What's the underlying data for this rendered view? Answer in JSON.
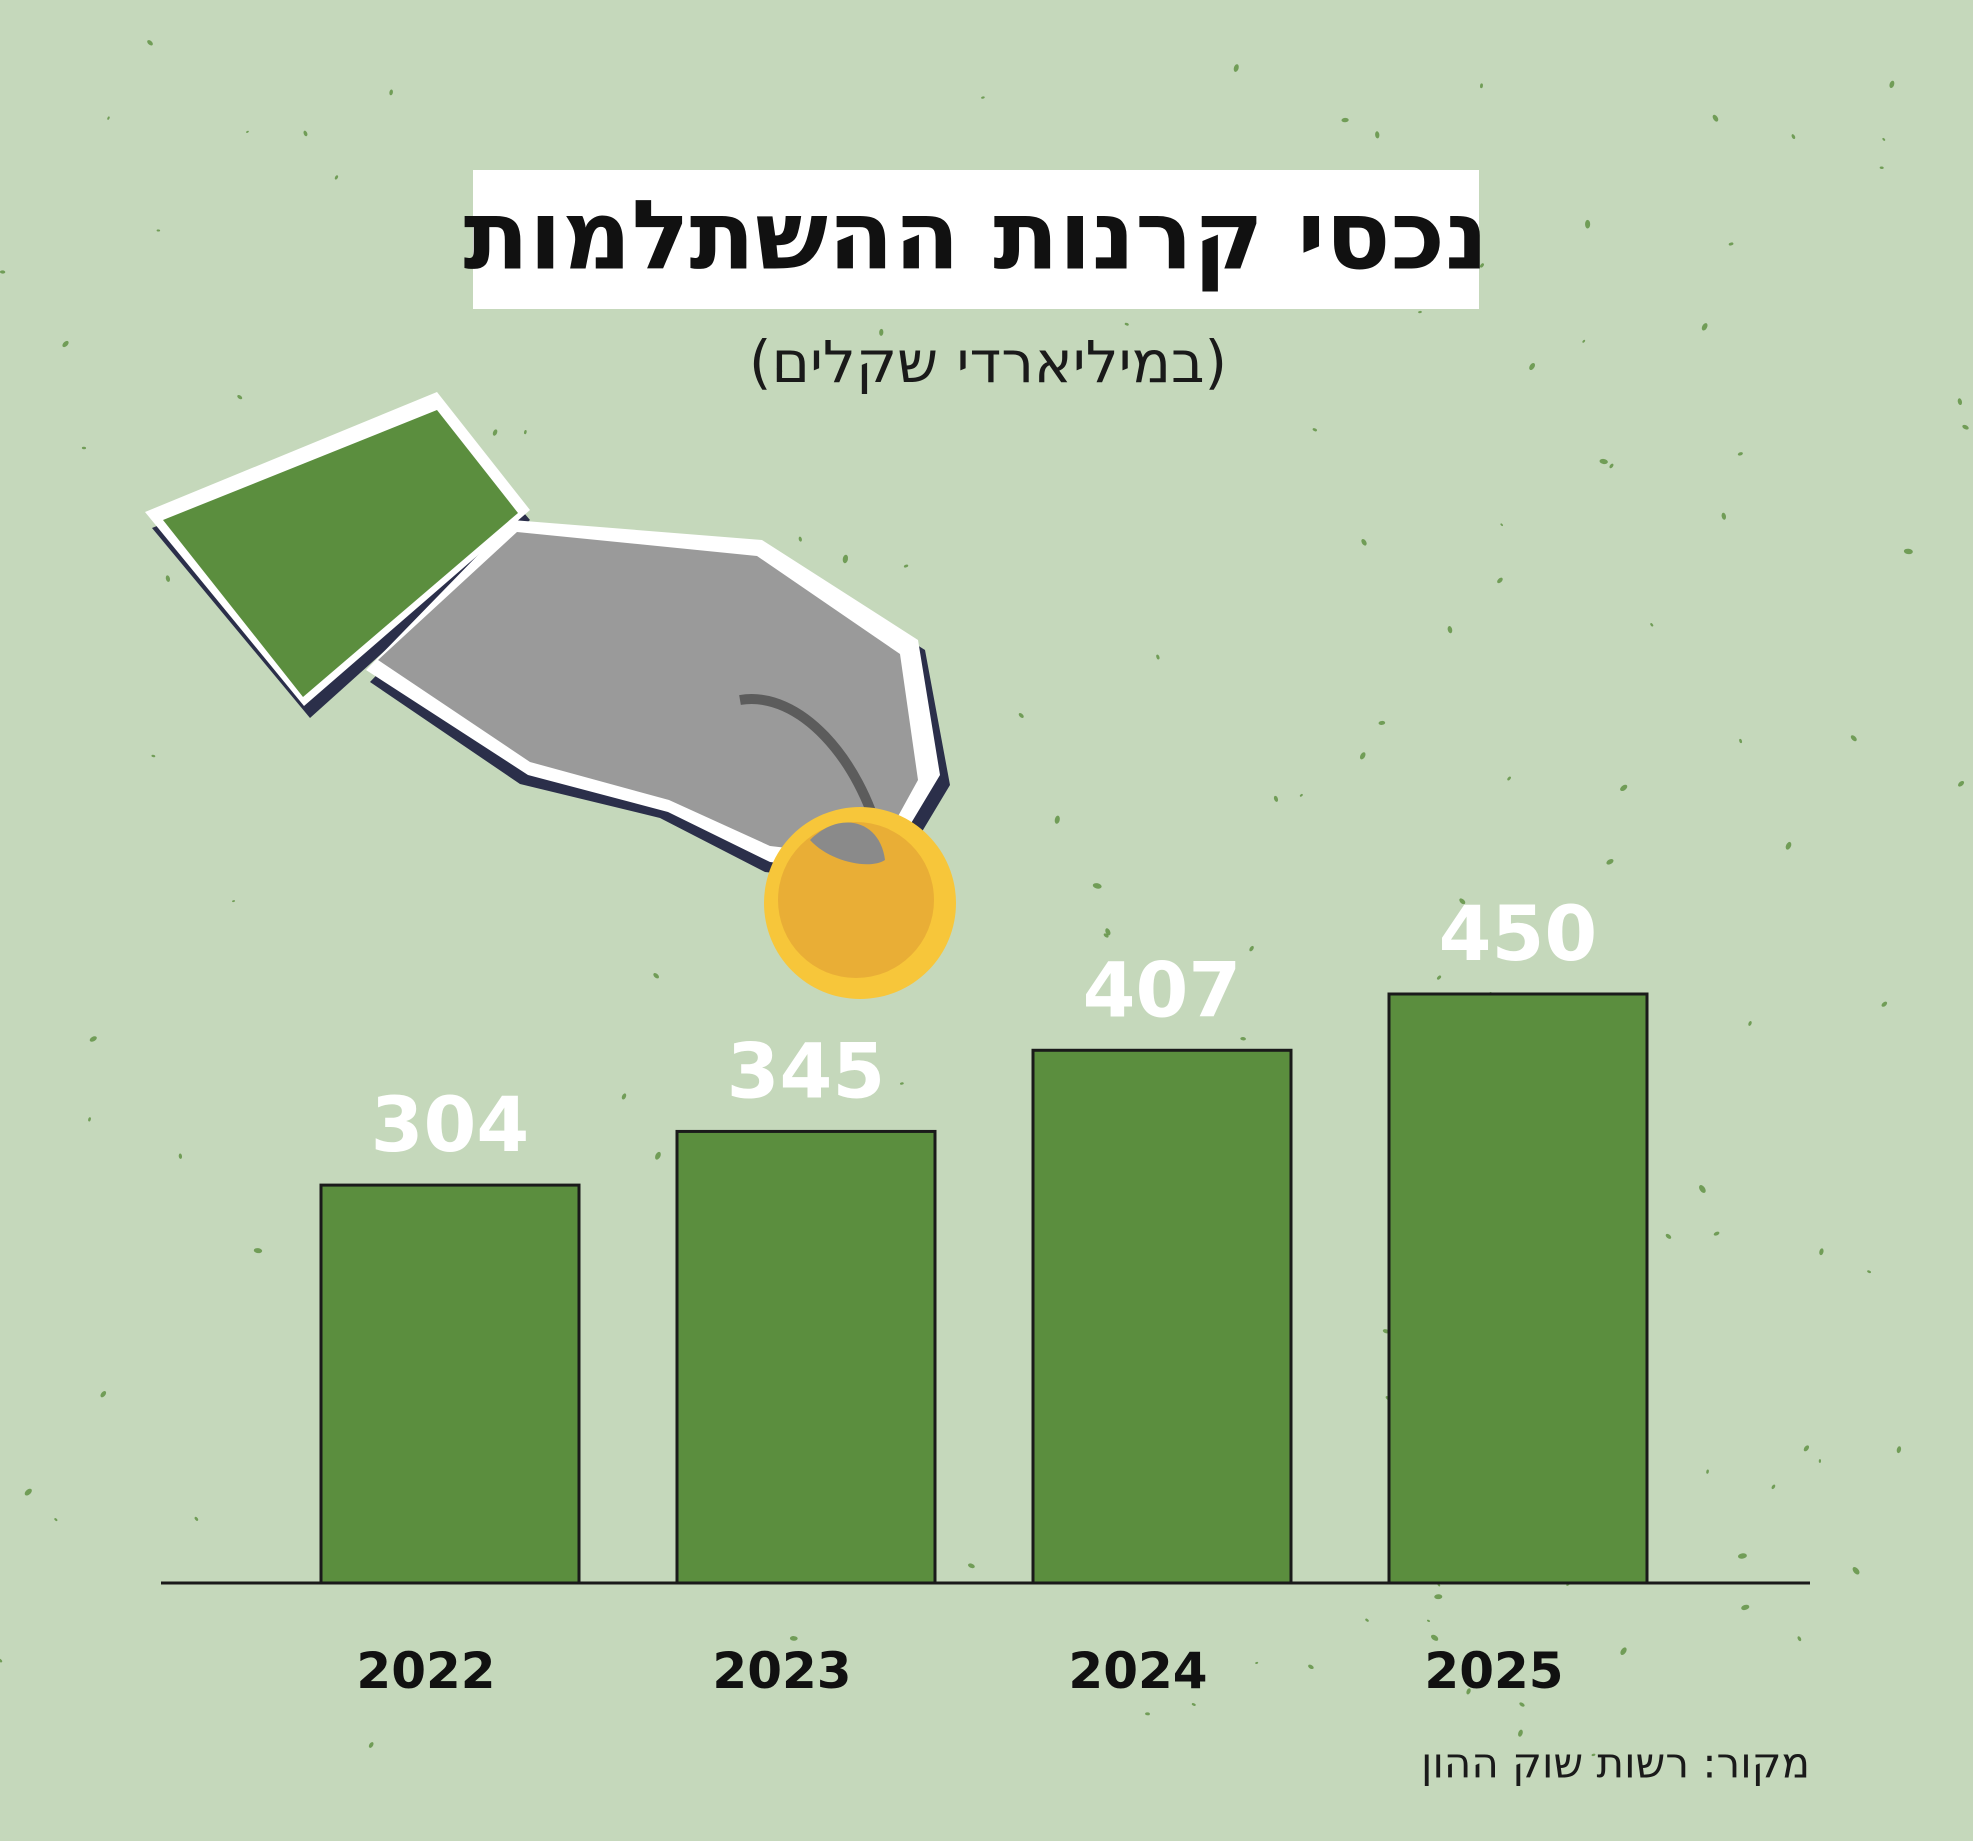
{
  "chart_data": {
    "type": "bar",
    "title": "נכסי קרנות ההשתלמות",
    "subtitle": "(במיליארדי שקלים)",
    "categories": [
      "2022",
      "2023",
      "2024",
      "2025"
    ],
    "values": [
      304,
      345,
      407,
      450
    ],
    "color": "#5b8e3e",
    "source": "מקור: רשות שוק ההון"
  }
}
